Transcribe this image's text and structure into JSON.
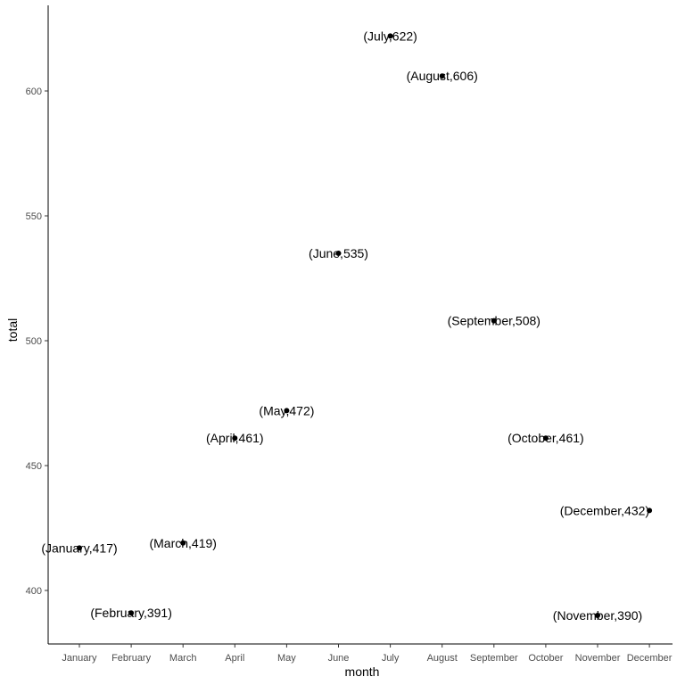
{
  "chart_data": {
    "type": "scatter",
    "xlabel": "month",
    "ylabel": "total",
    "x_categories": [
      "January",
      "February",
      "March",
      "April",
      "May",
      "June",
      "July",
      "August",
      "September",
      "October",
      "November",
      "December"
    ],
    "ylim": [
      380,
      625
    ],
    "y_ticks": [
      400,
      450,
      500,
      550,
      600
    ],
    "grid": false,
    "points": [
      {
        "x": "January",
        "y": 417,
        "label": "(January,417)"
      },
      {
        "x": "February",
        "y": 391,
        "label": "(February,391)"
      },
      {
        "x": "March",
        "y": 419,
        "label": "(March,419)"
      },
      {
        "x": "April",
        "y": 461,
        "label": "(April,461)"
      },
      {
        "x": "May",
        "y": 472,
        "label": "(May,472)"
      },
      {
        "x": "June",
        "y": 535,
        "label": "(June,535)"
      },
      {
        "x": "July",
        "y": 622,
        "label": "(July,622)"
      },
      {
        "x": "August",
        "y": 606,
        "label": "(August,606)"
      },
      {
        "x": "September",
        "y": 508,
        "label": "(September,508)"
      },
      {
        "x": "October",
        "y": 461,
        "label": "(October,461)"
      },
      {
        "x": "November",
        "y": 390,
        "label": "(November,390)"
      },
      {
        "x": "December",
        "y": 432,
        "label": "(December,432)"
      }
    ],
    "colors": {
      "point": "#000000",
      "text": "#000000",
      "tick_text": "#4d4d4d"
    }
  }
}
